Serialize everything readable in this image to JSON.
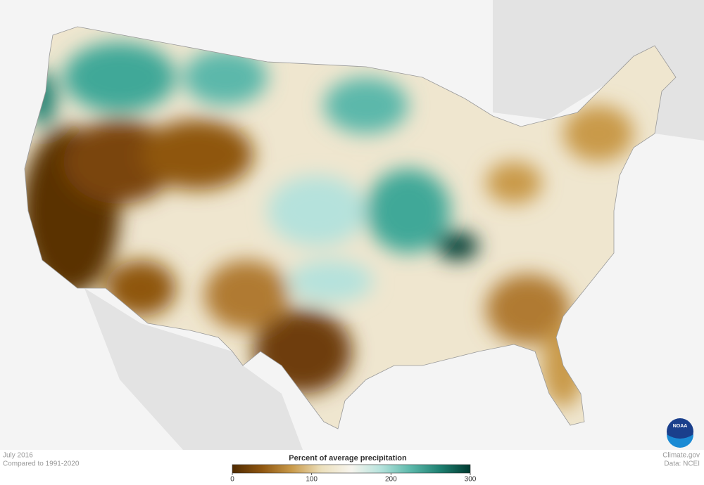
{
  "map": {
    "logo_text": "NOAA"
  },
  "legend": {
    "title": "Percent of average precipitation",
    "lim": [
      0,
      300
    ],
    "ticks": [
      0,
      100,
      200,
      300
    ],
    "colors": [
      "#4f2a00",
      "#8f5610",
      "#c99a4a",
      "#ece0bd",
      "#f7f5ee",
      "#b5e2dc",
      "#5bb8aa",
      "#1d7f70",
      "#003a30"
    ]
  },
  "footer": {
    "date": "July 2016",
    "baseline": "Compared to 1991-2020",
    "source": "Climate.gov",
    "data_source": "Data: NCEI"
  }
}
